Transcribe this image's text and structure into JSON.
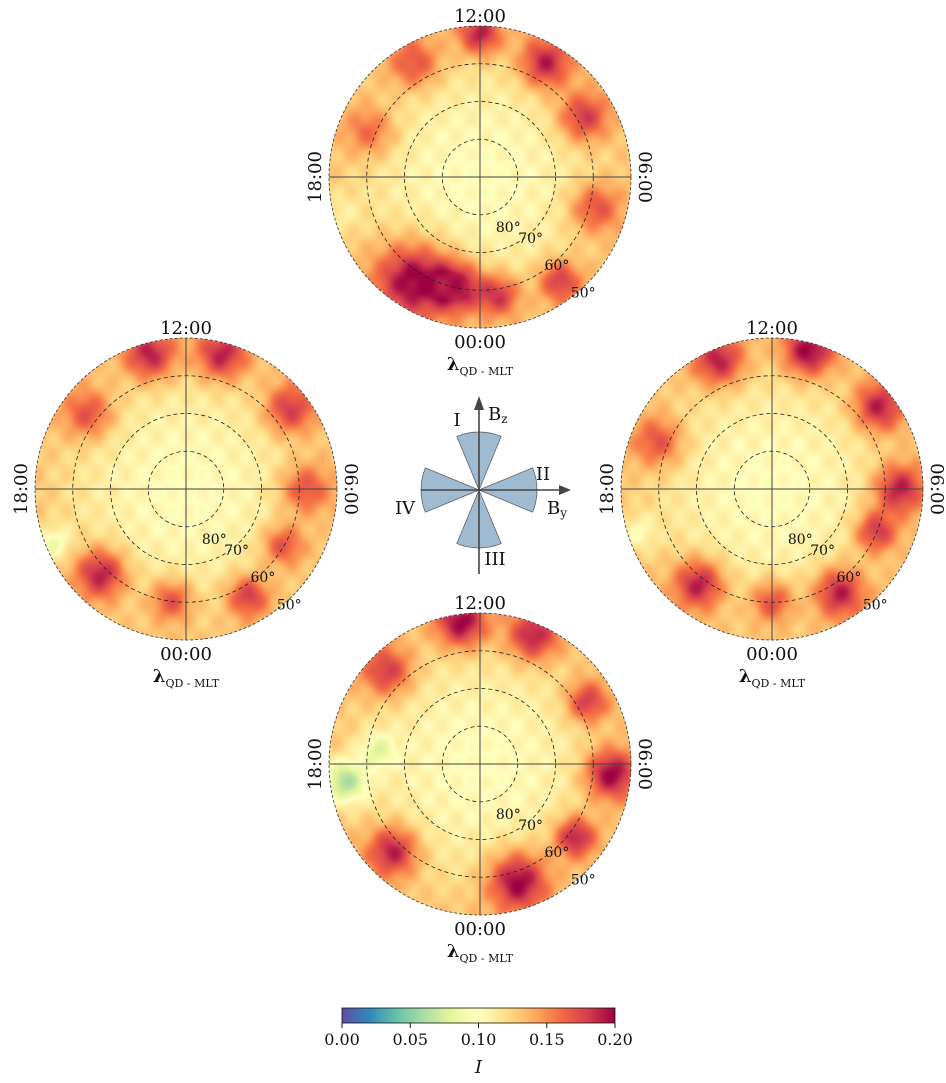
{
  "chart_data": {
    "type": "heatmap",
    "projection": "polar",
    "panels": [
      {
        "quadrant": "I",
        "mlt_labels": {
          "top": "12:00",
          "bottom": "00:00",
          "left": "18:00",
          "right": "06:00"
        },
        "lat_labels": [
          "80°",
          "70°",
          "60°",
          "50°"
        ],
        "axis_label": "λ_QD - MLT",
        "blobs": [
          {
            "mlt": 14.2,
            "lat": 57,
            "value": 0.2,
            "spread": 0.18
          },
          {
            "mlt": 12.8,
            "lat": 60,
            "value": 0.19,
            "spread": 0.12
          },
          {
            "mlt": 11.4,
            "lat": 58,
            "value": 0.18,
            "spread": 0.1
          },
          {
            "mlt": 9.5,
            "lat": 55,
            "value": 0.18,
            "spread": 0.1
          },
          {
            "mlt": 7.0,
            "lat": 58,
            "value": 0.17,
            "spread": 0.12
          },
          {
            "mlt": 4.0,
            "lat": 58,
            "value": 0.18,
            "spread": 0.12
          },
          {
            "mlt": 2.0,
            "lat": 55,
            "value": 0.19,
            "spread": 0.12
          },
          {
            "mlt": 0.0,
            "lat": 52,
            "value": 0.19,
            "spread": 0.1
          },
          {
            "mlt": 22.0,
            "lat": 55,
            "value": 0.17,
            "spread": 0.12
          },
          {
            "mlt": 19.5,
            "lat": 58,
            "value": 0.16,
            "spread": 0.12
          },
          {
            "mlt": 17.0,
            "lat": 52,
            "value": 0.11,
            "spread": 0.1
          }
        ]
      },
      {
        "quadrant": "IV",
        "mlt_labels": {
          "top": "12:00",
          "bottom": "00:00",
          "left": "18:00",
          "right": "06:00"
        },
        "lat_labels": [
          "80°",
          "70°",
          "60°",
          "50°"
        ],
        "axis_label": "λ_QD - MLT",
        "blobs": [
          {
            "mlt": 15.0,
            "lat": 58,
            "value": 0.19,
            "spread": 0.12
          },
          {
            "mlt": 12.5,
            "lat": 60,
            "value": 0.17,
            "spread": 0.1
          },
          {
            "mlt": 10.0,
            "lat": 57,
            "value": 0.18,
            "spread": 0.1
          },
          {
            "mlt": 8.0,
            "lat": 60,
            "value": 0.17,
            "spread": 0.1
          },
          {
            "mlt": 6.0,
            "lat": 58,
            "value": 0.17,
            "spread": 0.12
          },
          {
            "mlt": 3.5,
            "lat": 55,
            "value": 0.18,
            "spread": 0.12
          },
          {
            "mlt": 1.0,
            "lat": 53,
            "value": 0.19,
            "spread": 0.12
          },
          {
            "mlt": 23.0,
            "lat": 53,
            "value": 0.19,
            "spread": 0.12
          },
          {
            "mlt": 20.5,
            "lat": 57,
            "value": 0.17,
            "spread": 0.12
          },
          {
            "mlt": 16.5,
            "lat": 52,
            "value": 0.09,
            "spread": 0.08
          }
        ]
      },
      {
        "quadrant": "II",
        "mlt_labels": {
          "top": "12:00",
          "bottom": "00:00",
          "left": "18:00",
          "right": "06:00"
        },
        "lat_labels": [
          "80°",
          "70°",
          "60°",
          "50°"
        ],
        "axis_label": "λ_QD - MLT",
        "blobs": [
          {
            "mlt": 14.5,
            "lat": 58,
            "value": 0.19,
            "spread": 0.12
          },
          {
            "mlt": 12.0,
            "lat": 60,
            "value": 0.17,
            "spread": 0.1
          },
          {
            "mlt": 9.8,
            "lat": 57,
            "value": 0.19,
            "spread": 0.12
          },
          {
            "mlt": 7.5,
            "lat": 60,
            "value": 0.18,
            "spread": 0.1
          },
          {
            "mlt": 6.0,
            "lat": 56,
            "value": 0.19,
            "spread": 0.12
          },
          {
            "mlt": 3.5,
            "lat": 54,
            "value": 0.19,
            "spread": 0.12
          },
          {
            "mlt": 1.0,
            "lat": 52,
            "value": 0.2,
            "spread": 0.12
          },
          {
            "mlt": 22.5,
            "lat": 53,
            "value": 0.19,
            "spread": 0.12
          },
          {
            "mlt": 19.5,
            "lat": 57,
            "value": 0.17,
            "spread": 0.12
          },
          {
            "mlt": 16.8,
            "lat": 53,
            "value": 0.1,
            "spread": 0.08
          }
        ]
      },
      {
        "quadrant": "III",
        "mlt_labels": {
          "top": "12:00",
          "bottom": "00:00",
          "left": "18:00",
          "right": "06:00"
        },
        "lat_labels": [
          "80°",
          "70°",
          "60°",
          "50°"
        ],
        "axis_label": "λ_QD - MLT",
        "blobs": [
          {
            "mlt": 10.8,
            "lat": 57,
            "value": 0.2,
            "spread": 0.14
          },
          {
            "mlt": 8.5,
            "lat": 58,
            "value": 0.19,
            "spread": 0.1
          },
          {
            "mlt": 6.3,
            "lat": 55,
            "value": 0.2,
            "spread": 0.12
          },
          {
            "mlt": 4.0,
            "lat": 57,
            "value": 0.18,
            "spread": 0.1
          },
          {
            "mlt": 1.5,
            "lat": 53,
            "value": 0.19,
            "spread": 0.12
          },
          {
            "mlt": 23.5,
            "lat": 52,
            "value": 0.2,
            "spread": 0.12
          },
          {
            "mlt": 21.0,
            "lat": 55,
            "value": 0.18,
            "spread": 0.12
          },
          {
            "mlt": 15.0,
            "lat": 57,
            "value": 0.19,
            "spread": 0.12
          },
          {
            "mlt": 17.5,
            "lat": 54,
            "value": 0.06,
            "spread": 0.1
          },
          {
            "mlt": 18.5,
            "lat": 63,
            "value": 0.08,
            "spread": 0.08
          }
        ]
      }
    ],
    "center_value": 0.1,
    "ring_value": 0.13,
    "colorbar": {
      "label": "I",
      "range": [
        0.0,
        0.2
      ],
      "ticks": [
        "0.00",
        "0.05",
        "0.10",
        "0.15",
        "0.20"
      ],
      "colormap": "Spectral_r",
      "colors": [
        "#5e4fa2",
        "#3288bd",
        "#66c2a5",
        "#abdda4",
        "#e6f598",
        "#ffffbf",
        "#fee08b",
        "#fdae61",
        "#f46d43",
        "#d53e4f",
        "#9e0142"
      ]
    },
    "imf_diagram": {
      "z_label": "Bz",
      "y_label": "By",
      "sectors": [
        "I",
        "II",
        "III",
        "IV"
      ],
      "sector_color": "#9fbbd1"
    }
  }
}
